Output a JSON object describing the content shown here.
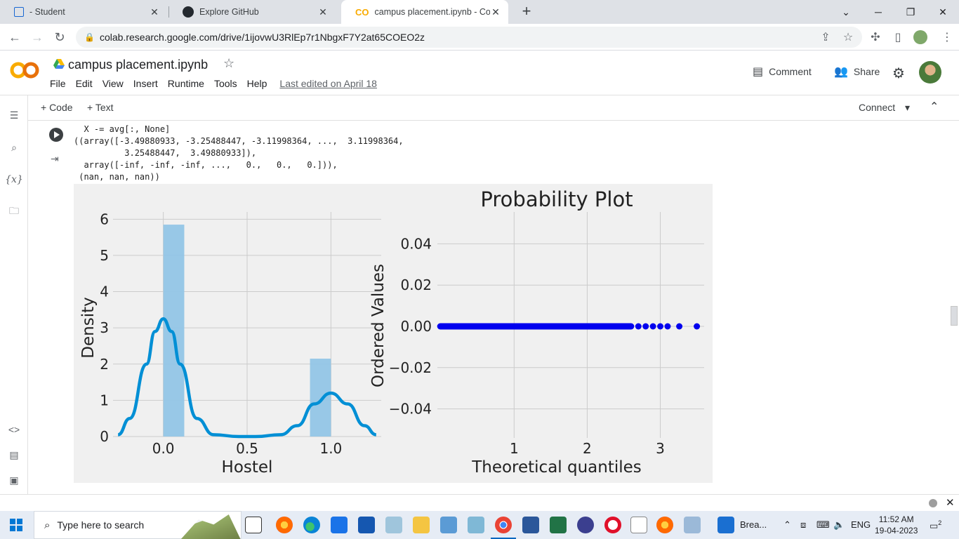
{
  "browser": {
    "tabs": [
      {
        "label": "- Student",
        "icon": "classroom-icon"
      },
      {
        "label": "Explore GitHub",
        "icon": "github-icon"
      },
      {
        "label": "campus placement.ipynb - Colab",
        "icon": "colab-icon"
      }
    ],
    "url": "colab.research.google.com/drive/1ijovwU3RlEp7r1NbgxF7Y2at65COEO2z"
  },
  "colab": {
    "title": "campus placement.ipynb",
    "menu": [
      "File",
      "Edit",
      "View",
      "Insert",
      "Runtime",
      "Tools",
      "Help"
    ],
    "last_edited": "Last edited on April 18",
    "comment_label": "Comment",
    "share_label": "Share",
    "add_code": "+ Code",
    "add_text": "+ Text",
    "connect_label": "Connect",
    "rail_vars": "{x}",
    "accent": "#f9ab00"
  },
  "output": {
    "lines": [
      "  X -= avg[:, None]",
      "((array([-3.49880933, -3.25488447, -3.11998364, ...,  3.11998364,",
      "          3.25488447,  3.49880933]),",
      "  array([-inf, -inf, -inf, ...,   0.,   0.,   0.])),",
      " (nan, nan, nan))"
    ]
  },
  "chart_data": [
    {
      "type": "bar",
      "xlabel": "Hostel",
      "ylabel": "Density",
      "xlim": [
        -0.3,
        1.3
      ],
      "ylim": [
        0,
        6.2
      ],
      "xticks": [
        "0.0",
        "0.5",
        "1.0"
      ],
      "yticks": [
        "0",
        "1",
        "2",
        "3",
        "4",
        "5",
        "6"
      ],
      "bars": [
        {
          "x_start": 0.0,
          "x_end": 0.125,
          "value": 5.85
        },
        {
          "x_start": 0.875,
          "x_end": 1.0,
          "value": 2.15
        }
      ],
      "kde": {
        "x": [
          -0.27,
          -0.2,
          -0.1,
          -0.05,
          0.0,
          0.05,
          0.1,
          0.2,
          0.3,
          0.45,
          0.55,
          0.7,
          0.8,
          0.9,
          1.0,
          1.1,
          1.2,
          1.27
        ],
        "y": [
          0.05,
          0.5,
          2.0,
          2.9,
          3.25,
          2.9,
          2.0,
          0.5,
          0.05,
          0.0,
          0.0,
          0.05,
          0.3,
          0.9,
          1.2,
          0.9,
          0.3,
          0.05
        ]
      },
      "bar_color": "#92c5e6",
      "line_color": "#008fd5",
      "grid": true
    },
    {
      "type": "scatter",
      "title": "Probability Plot",
      "xlabel": "Theoretical quantiles",
      "ylabel": "Ordered Values",
      "xlim": [
        -0.05,
        3.6
      ],
      "ylim": [
        -0.05,
        0.05
      ],
      "xticks": [
        "1",
        "2",
        "3"
      ],
      "yticks": [
        "0.04",
        "0.02",
        "0.00",
        "−0.02",
        "−0.04"
      ],
      "points_x": [
        -0.4,
        3.5
      ],
      "highlight_x": [
        2.7,
        2.8,
        2.9,
        3.0,
        3.1,
        3.26,
        3.5
      ],
      "points_y": 0.0,
      "point_color": "#0000ee",
      "grid": true
    }
  ],
  "taskbar": {
    "search_placeholder": "Type here to search",
    "breakout_label": "Brea...",
    "lang": "ENG",
    "time": "11:52 AM",
    "date": "19-04-2023",
    "notif_count": "2"
  }
}
